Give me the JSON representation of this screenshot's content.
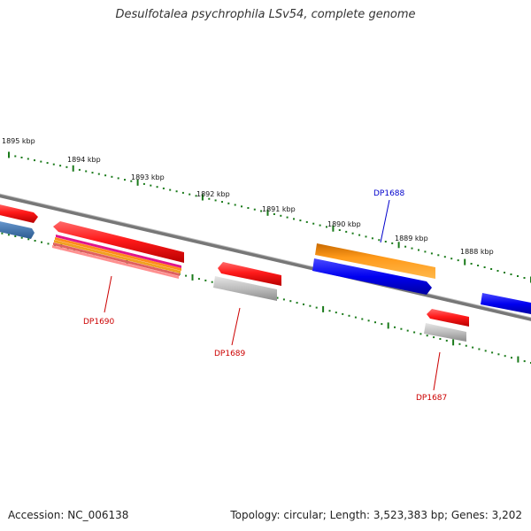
{
  "title": "Desulfotalea psychrophila LSv54, complete genome",
  "footer": {
    "accession": "Accession: NC_006138",
    "summary": "Topology: circular; Length: 3,523,383 bp; Genes: 3,202"
  },
  "colors": {
    "backbone": "#888888",
    "tick": "#1a7a1a",
    "label_red": "#cc0000",
    "label_blue": "#0000cc"
  },
  "scale": {
    "unit": "kbp",
    "labels": [
      "1895 kbp",
      "1894 kbp",
      "1893 kbp",
      "1892 kbp",
      "1891 kbp",
      "1890 kbp",
      "1889 kbp",
      "1888 kbp"
    ]
  },
  "genes": [
    {
      "name": "DP1688",
      "label_color": "#0000cc"
    },
    {
      "name": "DP1690",
      "label_color": "#cc0000"
    },
    {
      "name": "DP1689",
      "label_color": "#cc0000"
    },
    {
      "name": "DP1687",
      "label_color": "#cc0000"
    }
  ]
}
